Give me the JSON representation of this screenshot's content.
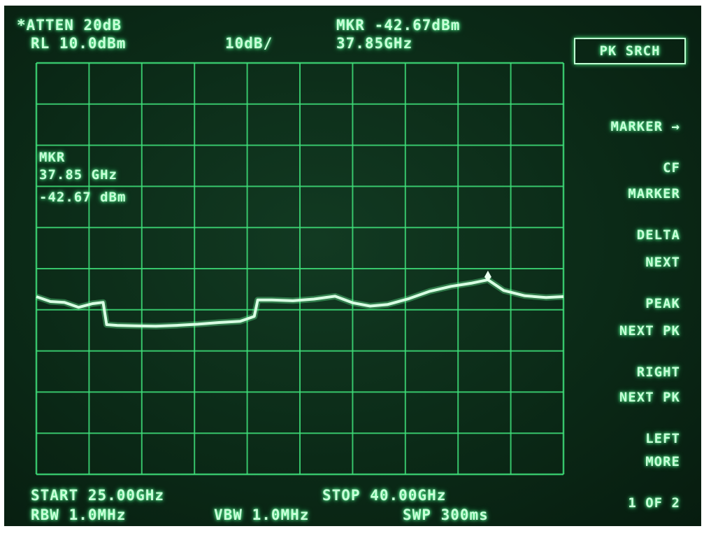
{
  "header": {
    "atten": "*ATTEN 20dB",
    "ref_level": "RL 10.0dBm",
    "scale": "10dB/",
    "marker_level": "MKR -42.67dBm",
    "marker_freq": "37.85GHz"
  },
  "marker_box": {
    "title": "MKR",
    "freq": "37.85 GHz",
    "level": "-42.67 dBm"
  },
  "softkeys": {
    "active": "PK SRCH",
    "items": [
      {
        "line1": "MARKER →",
        "line2": "CF"
      },
      {
        "line1": "MARKER",
        "line2": "DELTA"
      },
      {
        "line1": "NEXT",
        "line2": "PEAK"
      },
      {
        "line1": "NEXT PK",
        "line2": "RIGHT"
      },
      {
        "line1": "NEXT PK",
        "line2": "LEFT"
      },
      {
        "line1": "MORE",
        "line2": "1 OF 2"
      }
    ]
  },
  "footer": {
    "start": "START 25.00GHz",
    "stop": "STOP 40.00GHz",
    "rbw": "RBW 1.0MHz",
    "vbw": "VBW 1.0MHz",
    "sweep": "SWP 300ms"
  },
  "trace_color": "#d9ffe3",
  "grid_color": "#3fe07a",
  "chart_data": {
    "type": "line",
    "xlabel": "",
    "ylabel": "",
    "xlim": [
      25.0,
      40.0
    ],
    "ylim": [
      -90.0,
      10.0
    ],
    "x_unit": "GHz",
    "y_unit": "dBm",
    "grid": true,
    "series": [
      {
        "x": [
          25.0,
          25.4,
          25.8,
          26.2,
          26.6,
          26.9,
          27.0,
          27.3,
          27.8,
          28.4,
          29.0,
          29.6,
          30.2,
          30.8,
          31.2,
          31.3,
          31.7,
          32.3,
          32.9,
          33.5,
          34.0,
          34.5,
          35.0,
          35.6,
          36.2,
          36.8,
          37.4,
          37.85,
          38.3,
          38.9,
          39.5,
          40.0
        ],
        "y": [
          -46.8,
          -48.0,
          -48.2,
          -49.4,
          -48.5,
          -48.2,
          -53.6,
          -53.8,
          -53.9,
          -54.0,
          -53.8,
          -53.5,
          -53.1,
          -52.8,
          -51.6,
          -47.6,
          -47.6,
          -47.8,
          -47.4,
          -46.7,
          -48.3,
          -49.1,
          -48.7,
          -47.3,
          -45.5,
          -44.3,
          -43.5,
          -42.7,
          -45.3,
          -46.6,
          -47.0,
          -46.8
        ]
      }
    ]
  }
}
